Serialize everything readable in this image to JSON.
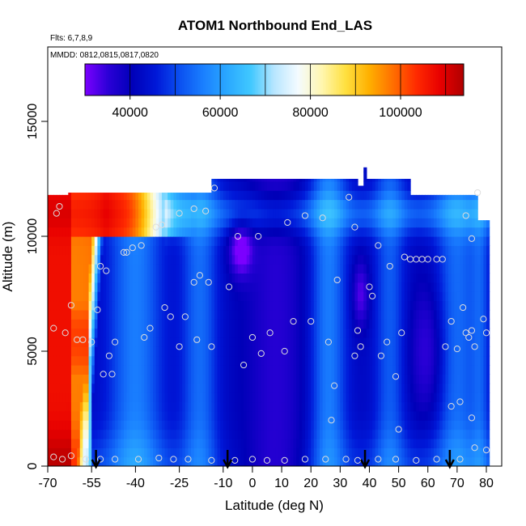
{
  "chart_data": {
    "type": "heatmap",
    "title": "ATOM1 Northbound End_LAS",
    "subtitle_flights": "Flts: 6,7,8,9",
    "subtitle_dates": "MMDD: 0812,0815,0817,0820",
    "xlabel": "Latitude (deg N)",
    "ylabel": "Altitude (m)",
    "xlim": [
      -70,
      82
    ],
    "ylim": [
      0,
      17500
    ],
    "x_ticks": [
      -70,
      -55,
      -40,
      -25,
      -10,
      0,
      10,
      20,
      30,
      40,
      50,
      60,
      70,
      80
    ],
    "x_tick_labels": [
      "-70",
      "-55",
      "-40",
      "-25",
      "-10",
      "0",
      "10",
      "20",
      "30",
      "40",
      "50",
      "60",
      "70",
      "80"
    ],
    "y_ticks": [
      0,
      5000,
      10000,
      15000
    ],
    "y_tick_labels": [
      "0",
      "5000",
      "10000",
      "15000"
    ],
    "colorbar": {
      "range": [
        30000,
        114000
      ],
      "ticks": [
        40000,
        60000,
        80000,
        100000
      ],
      "tick_labels": [
        "40000",
        "60000",
        "80000",
        "100000"
      ],
      "placement": "top",
      "colors": [
        "#7b00ff",
        "#2a00d6",
        "#0000b8",
        "#0018d8",
        "#0b50f0",
        "#1a7fff",
        "#2aa8ff",
        "#40c8ff",
        "#b8e6ff",
        "#f4fbff",
        "#fff6b0",
        "#ffe040",
        "#ffb000",
        "#ff7000",
        "#ff2a00",
        "#e80000",
        "#b00000"
      ]
    },
    "arrows_x": [
      -53.5,
      -8.5,
      38.5,
      67.5
    ],
    "observations": [
      {
        "x": -68,
        "y": 400
      },
      {
        "x": -65,
        "y": 300
      },
      {
        "x": -62,
        "y": 450
      },
      {
        "x": -57,
        "y": 300
      },
      {
        "x": -52,
        "y": 300
      },
      {
        "x": -47,
        "y": 300
      },
      {
        "x": -39,
        "y": 300
      },
      {
        "x": -32,
        "y": 350
      },
      {
        "x": -27,
        "y": 300
      },
      {
        "x": -22,
        "y": 300
      },
      {
        "x": -14,
        "y": 250
      },
      {
        "x": -6,
        "y": 250
      },
      {
        "x": 0,
        "y": 300
      },
      {
        "x": 5,
        "y": 250
      },
      {
        "x": 11,
        "y": 250
      },
      {
        "x": 18,
        "y": 300
      },
      {
        "x": 25,
        "y": 300
      },
      {
        "x": 32,
        "y": 300
      },
      {
        "x": 36,
        "y": 250
      },
      {
        "x": 43,
        "y": 300
      },
      {
        "x": 49,
        "y": 300
      },
      {
        "x": 56,
        "y": 250
      },
      {
        "x": 63,
        "y": 300
      },
      {
        "x": 71,
        "y": 300
      },
      {
        "x": 76,
        "y": 800
      },
      {
        "x": 80,
        "y": 700
      },
      {
        "x": -67,
        "y": 11000
      },
      {
        "x": -66,
        "y": 11300
      },
      {
        "x": -68,
        "y": 6000
      },
      {
        "x": -64,
        "y": 5800
      },
      {
        "x": -62,
        "y": 7000
      },
      {
        "x": -60,
        "y": 5500
      },
      {
        "x": -58,
        "y": 5500
      },
      {
        "x": -55,
        "y": 5400
      },
      {
        "x": -53,
        "y": 6800
      },
      {
        "x": -52,
        "y": 8700
      },
      {
        "x": -50,
        "y": 8500
      },
      {
        "x": -47,
        "y": 5400
      },
      {
        "x": -49,
        "y": 4800
      },
      {
        "x": -51,
        "y": 4000
      },
      {
        "x": -48,
        "y": 4000
      },
      {
        "x": -44,
        "y": 9300
      },
      {
        "x": -43,
        "y": 9300
      },
      {
        "x": -41,
        "y": 9500
      },
      {
        "x": -38,
        "y": 9600
      },
      {
        "x": -37,
        "y": 5600
      },
      {
        "x": -35,
        "y": 6000
      },
      {
        "x": -33,
        "y": 10400
      },
      {
        "x": -31,
        "y": 10500
      },
      {
        "x": -30,
        "y": 6900
      },
      {
        "x": -28,
        "y": 6500
      },
      {
        "x": -25,
        "y": 5200
      },
      {
        "x": -23,
        "y": 6500
      },
      {
        "x": -20,
        "y": 8000
      },
      {
        "x": -18,
        "y": 8300
      },
      {
        "x": -15,
        "y": 8000
      },
      {
        "x": -19,
        "y": 5500
      },
      {
        "x": -14,
        "y": 5200
      },
      {
        "x": -25,
        "y": 11000
      },
      {
        "x": -20,
        "y": 11200
      },
      {
        "x": -16,
        "y": 11100
      },
      {
        "x": -13,
        "y": 12100
      },
      {
        "x": -8,
        "y": 7800
      },
      {
        "x": -5,
        "y": 10000
      },
      {
        "x": 2,
        "y": 10000
      },
      {
        "x": 0,
        "y": 5600
      },
      {
        "x": 3,
        "y": 4900
      },
      {
        "x": -3,
        "y": 4400
      },
      {
        "x": 6,
        "y": 5800
      },
      {
        "x": 12,
        "y": 10600
      },
      {
        "x": 14,
        "y": 6300
      },
      {
        "x": 11,
        "y": 5000
      },
      {
        "x": 18,
        "y": 10900
      },
      {
        "x": 20,
        "y": 6300
      },
      {
        "x": 24,
        "y": 10800
      },
      {
        "x": 26,
        "y": 5400
      },
      {
        "x": 28,
        "y": 3500
      },
      {
        "x": 27,
        "y": 2000
      },
      {
        "x": 29,
        "y": 8100
      },
      {
        "x": 33,
        "y": 11700
      },
      {
        "x": 35,
        "y": 10400
      },
      {
        "x": 36,
        "y": 5900
      },
      {
        "x": 35,
        "y": 4800
      },
      {
        "x": 37,
        "y": 5200
      },
      {
        "x": 40,
        "y": 7800
      },
      {
        "x": 41,
        "y": 7400
      },
      {
        "x": 43,
        "y": 9600
      },
      {
        "x": 44,
        "y": 4800
      },
      {
        "x": 46,
        "y": 5400
      },
      {
        "x": 47,
        "y": 8700
      },
      {
        "x": 49,
        "y": 3900
      },
      {
        "x": 50,
        "y": 1600
      },
      {
        "x": 51,
        "y": 5800
      },
      {
        "x": 52,
        "y": 9100
      },
      {
        "x": 54,
        "y": 9000
      },
      {
        "x": 56,
        "y": 9000
      },
      {
        "x": 58,
        "y": 9000
      },
      {
        "x": 60,
        "y": 9000
      },
      {
        "x": 63,
        "y": 9000
      },
      {
        "x": 65,
        "y": 9000
      },
      {
        "x": 66,
        "y": 5200
      },
      {
        "x": 68,
        "y": 6300
      },
      {
        "x": 68,
        "y": 2600
      },
      {
        "x": 70,
        "y": 5100
      },
      {
        "x": 71,
        "y": 2800
      },
      {
        "x": 72,
        "y": 6900
      },
      {
        "x": 73,
        "y": 5800
      },
      {
        "x": 74,
        "y": 5600
      },
      {
        "x": 75,
        "y": 5900
      },
      {
        "x": 76,
        "y": 5200
      },
      {
        "x": 75,
        "y": 2100
      },
      {
        "x": 73,
        "y": 10900
      },
      {
        "x": 75,
        "y": 9900
      },
      {
        "x": 77,
        "y": 11900
      },
      {
        "x": 79,
        "y": 6400
      },
      {
        "x": 80,
        "y": 5800
      }
    ]
  }
}
